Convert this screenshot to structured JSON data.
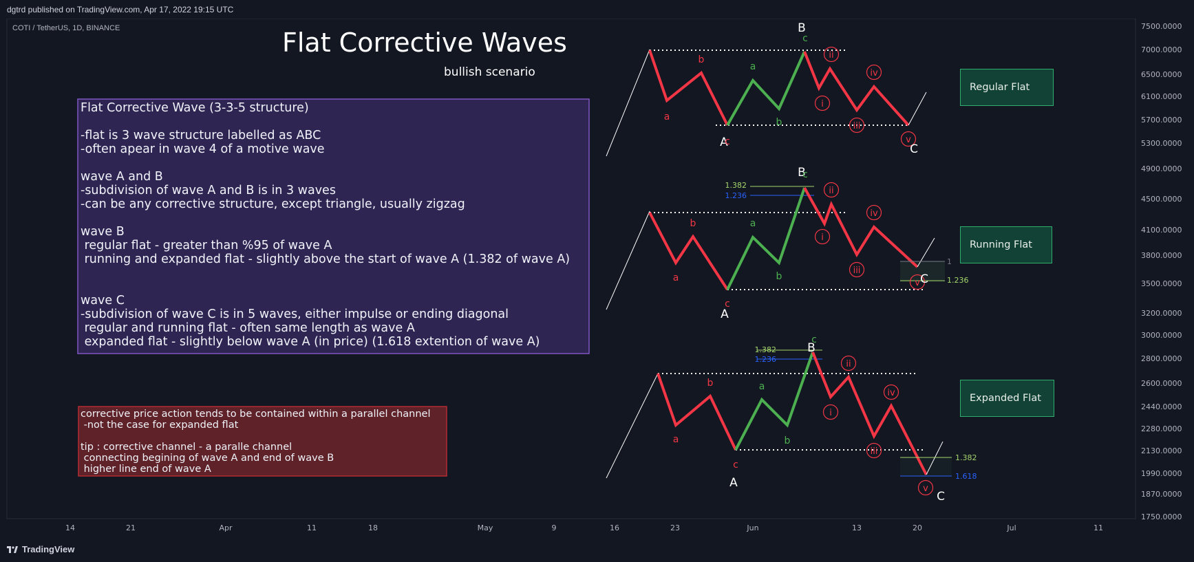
{
  "header": {
    "published": "dgtrd published on TradingView.com, Apr 17, 2022 19:15 UTC",
    "symbol": "COTI / TetherUS, 1D, BINANCE"
  },
  "title": "Flat Corrective Waves",
  "subtitle": "bullish scenario",
  "notes_main": {
    "lines": [
      "Flat Corrective Wave (3-3-5 structure)",
      "",
      "-flat is 3 wave structure labelled as ABC",
      "-often apear in wave 4 of a motive wave",
      "",
      "wave A and B",
      "-subdivision of wave A and B is in 3 waves",
      "-can be any corrective structure, except triangle, usually zigzag",
      "",
      "wave B",
      " regular flat - greater than %95 of wave A",
      " running and expanded flat - slightly above the start of wave A (1.382 of wave A)",
      "",
      "",
      "wave C",
      "-subdivision of wave C is in 5 waves, either impulse or ending diagonal",
      " regular and running flat - often same length as wave A",
      " expanded flat - slightly below wave A (in price) (1.618 extention of wave A)"
    ]
  },
  "notes_tip": {
    "lines": [
      "corrective price action tends to be contained within a parallel channel",
      " -not the case for expanded flat",
      "",
      "tip : corrective channel - a paralle channel",
      " connecting begining of wave A and end of wave B",
      " higher line end of wave A"
    ]
  },
  "flat_labels": [
    "Regular Flat",
    "Running Flat",
    "Expanded Flat"
  ],
  "price_axis": [
    "7500.0000",
    "7000.0000",
    "6500.0000",
    "6100.0000",
    "5700.0000",
    "5300.0000",
    "4900.0000",
    "4500.0000",
    "4100.0000",
    "3800.0000",
    "3500.0000",
    "3200.0000",
    "3000.0000",
    "2800.0000",
    "2600.0000",
    "2440.0000",
    "2280.0000",
    "2130.0000",
    "1990.0000",
    "1870.0000",
    "1750.0000"
  ],
  "time_axis": [
    "14",
    "21",
    "Apr",
    "11",
    "18",
    "May",
    "9",
    "16",
    "23",
    "Jun",
    "13",
    "20",
    "Jul",
    "11"
  ],
  "wave_labels": {
    "major": [
      "A",
      "B",
      "C"
    ],
    "minor": [
      "a",
      "b",
      "c"
    ],
    "impulse": [
      "i",
      "ii",
      "iii",
      "iv",
      "v"
    ]
  },
  "fib_levels": {
    "running_b": [
      "1.382",
      "1.236"
    ],
    "running_c": [
      "1",
      "1.236"
    ],
    "expanded_b": [
      "1.382",
      "1.236"
    ],
    "expanded_c": [
      "1.382",
      "1.618"
    ]
  },
  "brand": "TradingView",
  "colors": {
    "background": "#131722",
    "red_wave": "#f23645",
    "green_wave": "#4caf50",
    "notes_main_bg": "#2f2553",
    "notes_main_border": "#7e57c2",
    "notes_tip_bg": "#5e2228",
    "notes_tip_border": "#b42c33",
    "label_bg": "#124236",
    "fib_green": "#a5d66b",
    "fib_blue": "#2962ff"
  }
}
